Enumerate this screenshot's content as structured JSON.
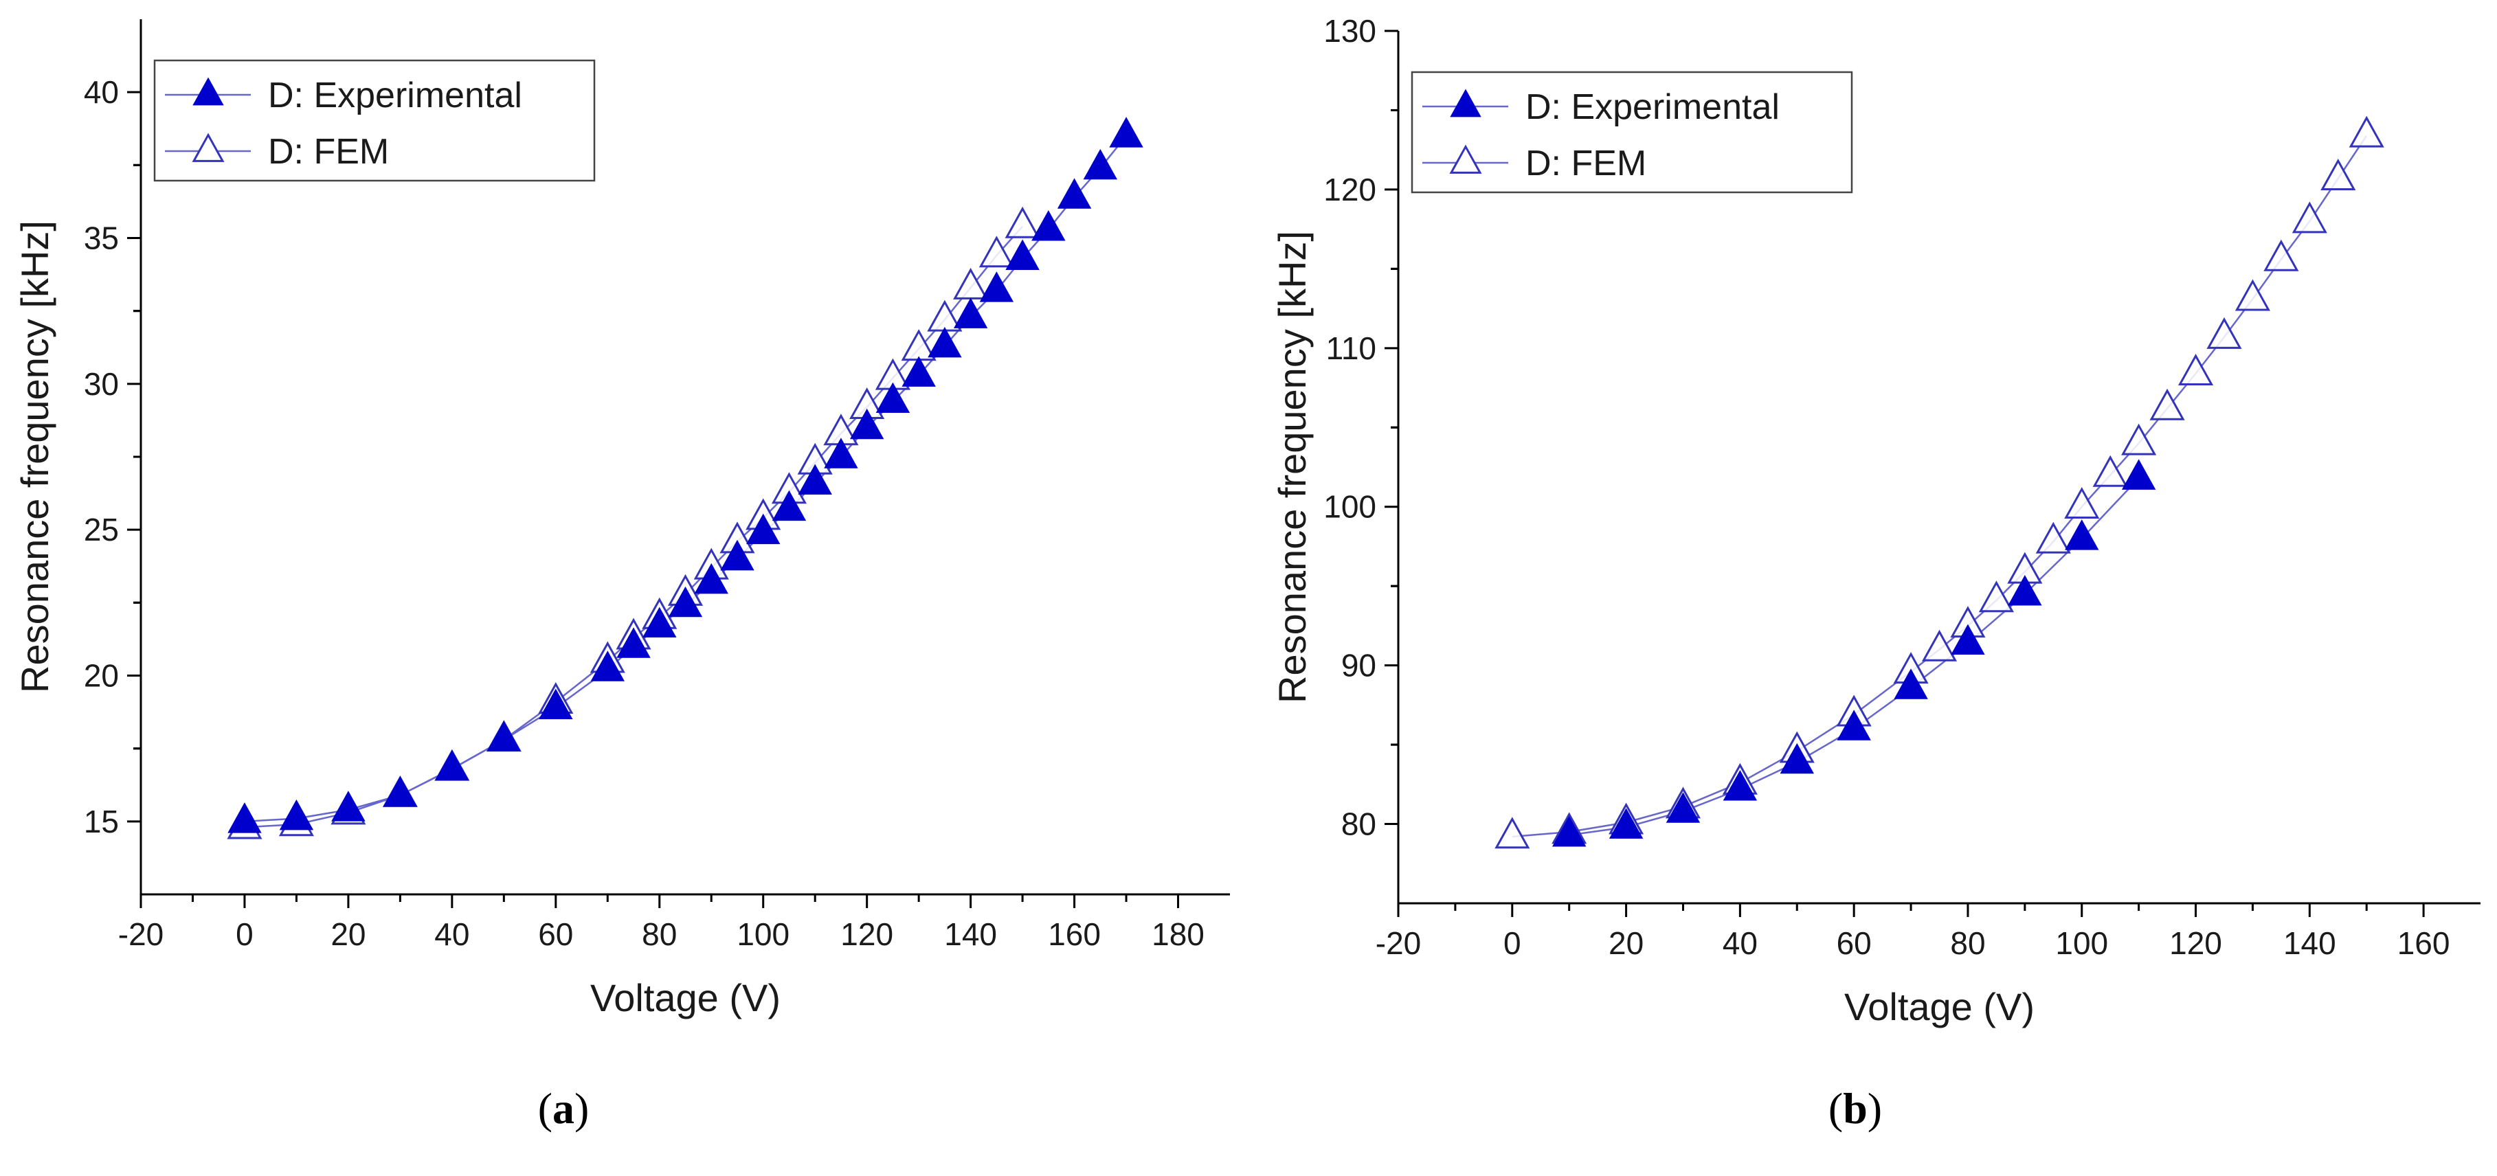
{
  "colors": {
    "series_line": "#6666cc",
    "experimental_marker": "#0000cc",
    "fem_marker_stroke": "#3333bb",
    "fem_marker_fill": "#ffffff"
  },
  "chart_data": [
    {
      "panel": "a",
      "type": "line",
      "xlabel": "Voltage (V)",
      "ylabel": "Resonance frequency [kHz]",
      "xlim": [
        -20,
        190
      ],
      "ylim": [
        12.5,
        42.5
      ],
      "xticks": [
        -20,
        0,
        20,
        40,
        60,
        80,
        100,
        120,
        140,
        160,
        180
      ],
      "yticks": [
        15,
        20,
        25,
        30,
        35,
        40
      ],
      "legend_placement": "top-left",
      "series": [
        {
          "name": "D: Experimental",
          "marker": "filled-triangle",
          "x": [
            0,
            10,
            20,
            30,
            40,
            50,
            60,
            70,
            75,
            80,
            85,
            90,
            95,
            100,
            105,
            110,
            115,
            120,
            125,
            130,
            135,
            140,
            145,
            150,
            155,
            160,
            165,
            170
          ],
          "y": [
            15.0,
            15.1,
            15.4,
            15.9,
            16.8,
            17.8,
            18.9,
            20.2,
            21.0,
            21.7,
            22.4,
            23.2,
            24.0,
            24.9,
            25.7,
            26.6,
            27.5,
            28.5,
            29.4,
            30.3,
            31.3,
            32.3,
            33.2,
            34.3,
            35.3,
            36.4,
            37.4,
            38.5
          ]
        },
        {
          "name": "D: FEM",
          "marker": "open-triangle",
          "x": [
            0,
            10,
            20,
            30,
            40,
            50,
            60,
            70,
            75,
            80,
            85,
            90,
            95,
            100,
            105,
            110,
            115,
            120,
            125,
            130,
            135,
            140,
            145,
            150
          ],
          "y": [
            14.8,
            14.9,
            15.3,
            15.9,
            16.8,
            17.8,
            19.1,
            20.5,
            21.3,
            22.0,
            22.8,
            23.7,
            24.6,
            25.4,
            26.3,
            27.3,
            28.3,
            29.2,
            30.2,
            31.2,
            32.2,
            33.3,
            34.4,
            35.4
          ]
        }
      ]
    },
    {
      "panel": "b",
      "type": "line",
      "xlabel": "Voltage (V)",
      "ylabel": "Resonance frequency [kHz]",
      "xlim": [
        -20,
        170
      ],
      "ylim": [
        75,
        130
      ],
      "xticks": [
        -20,
        0,
        20,
        40,
        60,
        80,
        100,
        120,
        140,
        160
      ],
      "yticks": [
        80,
        90,
        100,
        110,
        120,
        130
      ],
      "legend_placement": "top-left",
      "series": [
        {
          "name": "D: Experimental",
          "marker": "filled-triangle",
          "x": [
            10,
            20,
            30,
            40,
            50,
            60,
            70,
            80,
            90,
            100,
            110
          ],
          "y": [
            79.3,
            79.8,
            80.8,
            82.2,
            83.9,
            86.0,
            88.6,
            91.4,
            94.5,
            98.0,
            101.8
          ]
        },
        {
          "name": "D: FEM",
          "marker": "open-triangle",
          "x": [
            0,
            10,
            20,
            30,
            40,
            50,
            60,
            70,
            75,
            80,
            85,
            90,
            95,
            100,
            105,
            110,
            115,
            120,
            125,
            130,
            135,
            140,
            145,
            150
          ],
          "y": [
            79.2,
            79.5,
            80.1,
            81.1,
            82.6,
            84.6,
            86.9,
            89.6,
            91.0,
            92.5,
            94.1,
            95.9,
            97.8,
            100.0,
            102.0,
            104.0,
            106.2,
            108.4,
            110.7,
            113.1,
            115.6,
            118.0,
            120.7,
            123.4
          ]
        }
      ]
    }
  ],
  "captions": [
    {
      "open": "(",
      "letter": "a",
      "close": ")"
    },
    {
      "open": "(",
      "letter": "b",
      "close": ")"
    }
  ]
}
